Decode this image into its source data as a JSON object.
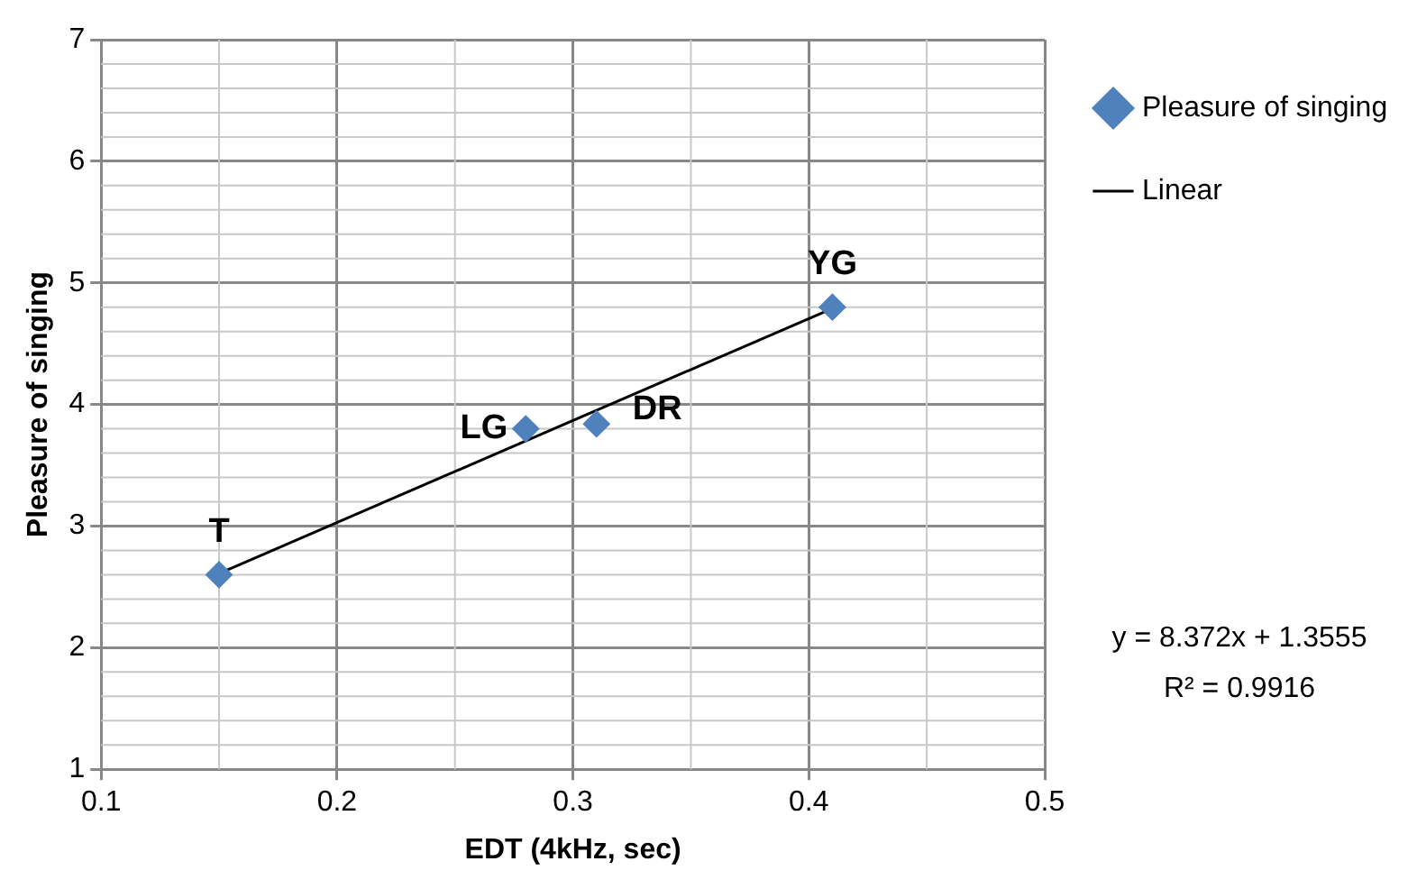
{
  "chart_data": {
    "type": "scatter",
    "xlabel": "EDT (4kHz, sec)",
    "ylabel": "Pleasure of singing",
    "series": [
      {
        "name": "Pleasure of singing",
        "color": "#4f81bd",
        "x": [
          0.15,
          0.28,
          0.31,
          0.41
        ],
        "values": [
          2.6,
          3.8,
          3.84,
          4.8
        ],
        "marker": "diamond"
      },
      {
        "name": "Linear",
        "type": "line",
        "color": "#000000",
        "x": [
          0.15,
          0.41
        ],
        "values": [
          2.61,
          4.79
        ],
        "marker": "none"
      }
    ],
    "xlim": [
      0.1,
      0.5
    ],
    "xticks": [
      0.1,
      0.2,
      0.3,
      0.4,
      0.5
    ],
    "ylim": [
      1,
      7
    ],
    "yticks": [
      1,
      2,
      3,
      4,
      5,
      6,
      7
    ],
    "grid": true,
    "legend": "right",
    "annotations": [
      {
        "text": "T",
        "x": 0.15,
        "y": 2.6
      },
      {
        "text": "LG",
        "x": 0.28,
        "y": 3.8
      },
      {
        "text": "DR",
        "x": 0.31,
        "y": 3.84
      },
      {
        "text": "YG",
        "x": 0.41,
        "y": 4.8
      },
      "y = 8.372x + 1.3555",
      "R² = 0.9916"
    ]
  }
}
